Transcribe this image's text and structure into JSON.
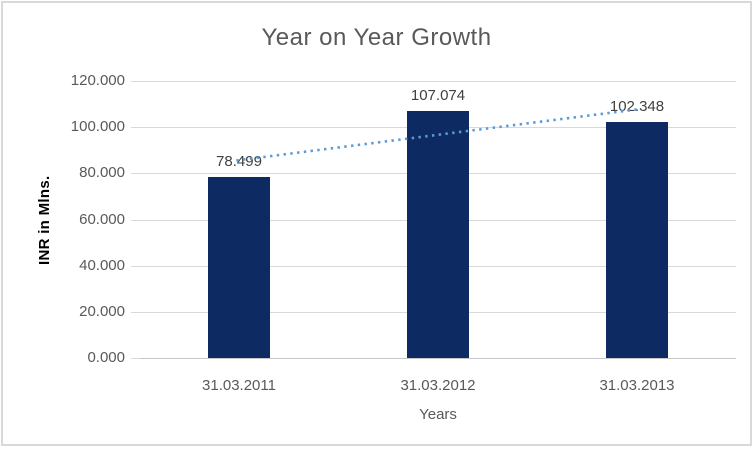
{
  "chart_data": {
    "type": "bar",
    "title": "Year on Year Growth",
    "categories": [
      "31.03.2011",
      "31.03.2012",
      "31.03.2013"
    ],
    "values": [
      78.499,
      107.074,
      102.348
    ],
    "data_labels": [
      "78.499",
      "107.074",
      "102.348"
    ],
    "xlabel": "Years",
    "ylabel": "INR in Mlns.",
    "ylim": [
      0,
      120
    ],
    "ytick_values": [
      0,
      20,
      40,
      60,
      80,
      100,
      120
    ],
    "ytick_labels": [
      "0.000",
      "20.000",
      "40.000",
      "60.000",
      "80.000",
      "100.000",
      "120.000"
    ],
    "grid": true,
    "legend": false,
    "trendline": {
      "type": "linear",
      "style": "dotted"
    }
  },
  "colors": {
    "bar_fill": "#0D2A63",
    "trendline": "#5B9BD5",
    "gridline": "#D9D9D9",
    "axis_line": "#C6C6C6",
    "frame_border": "#D9D9D9",
    "title_text": "#595959",
    "tick_text": "#595959",
    "data_label_text": "#404040",
    "y_axis_title_text": "#000000"
  }
}
